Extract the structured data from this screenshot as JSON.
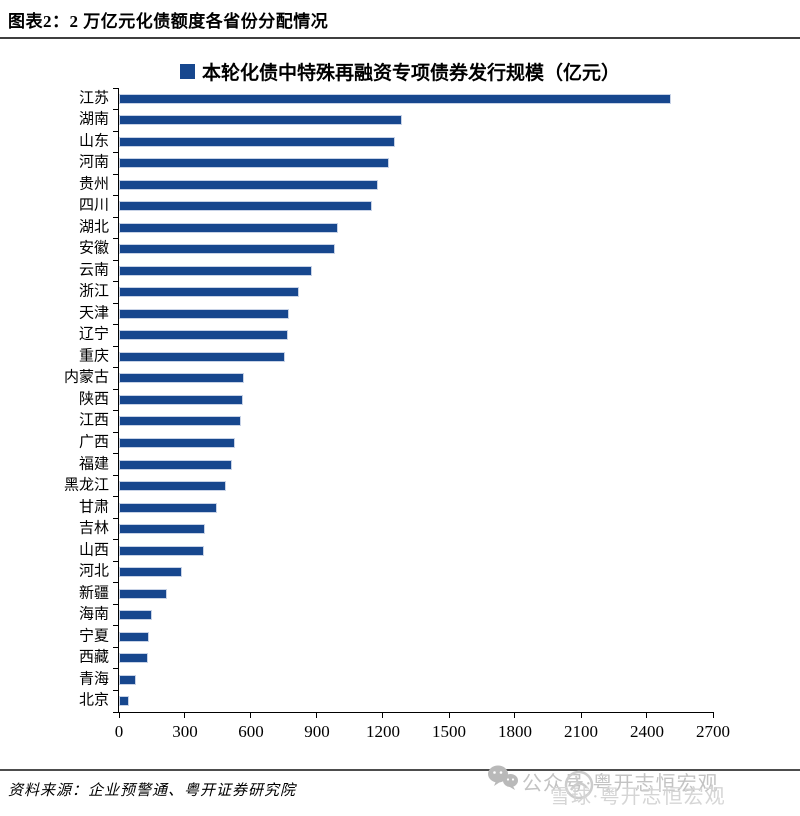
{
  "header": {
    "title": "图表2：2 万亿元化债额度各省份分配情况"
  },
  "chart_data": {
    "type": "bar",
    "orientation": "horizontal",
    "legend": "本轮化债中特殊再融资专项债券发行规模（亿元）",
    "unit": "亿元",
    "categories": [
      "江苏",
      "湖南",
      "山东",
      "河南",
      "贵州",
      "四川",
      "湖北",
      "安徽",
      "云南",
      "浙江",
      "天津",
      "辽宁",
      "重庆",
      "内蒙古",
      "陕西",
      "江西",
      "广西",
      "福建",
      "黑龙江",
      "甘肃",
      "吉林",
      "山西",
      "河北",
      "新疆",
      "海南",
      "宁夏",
      "西藏",
      "青海",
      "北京"
    ],
    "values": [
      2511,
      1288,
      1255,
      1227,
      1176,
      1148,
      996,
      984,
      876,
      818,
      771,
      767,
      756,
      566,
      562,
      556,
      525,
      512,
      485,
      446,
      389,
      386,
      286,
      217,
      151,
      136,
      131,
      77,
      46
    ],
    "xlim": [
      0,
      2700
    ],
    "x_ticks": [
      0,
      300,
      600,
      900,
      1200,
      1500,
      1800,
      2100,
      2400,
      2700
    ],
    "bar_color": "#17478E",
    "grid": false,
    "legend_position": "top"
  },
  "footer": {
    "source": "资料来源：企业预警通、粤开证券研究院",
    "watermark_line1": "公众号·粤开志恒宏观",
    "watermark_line2": "雪球·粤开志恒宏观"
  },
  "icons": {
    "legend_swatch": "legend-swatch",
    "wechat": "wechat-icon",
    "snowball": "snowball-icon"
  }
}
